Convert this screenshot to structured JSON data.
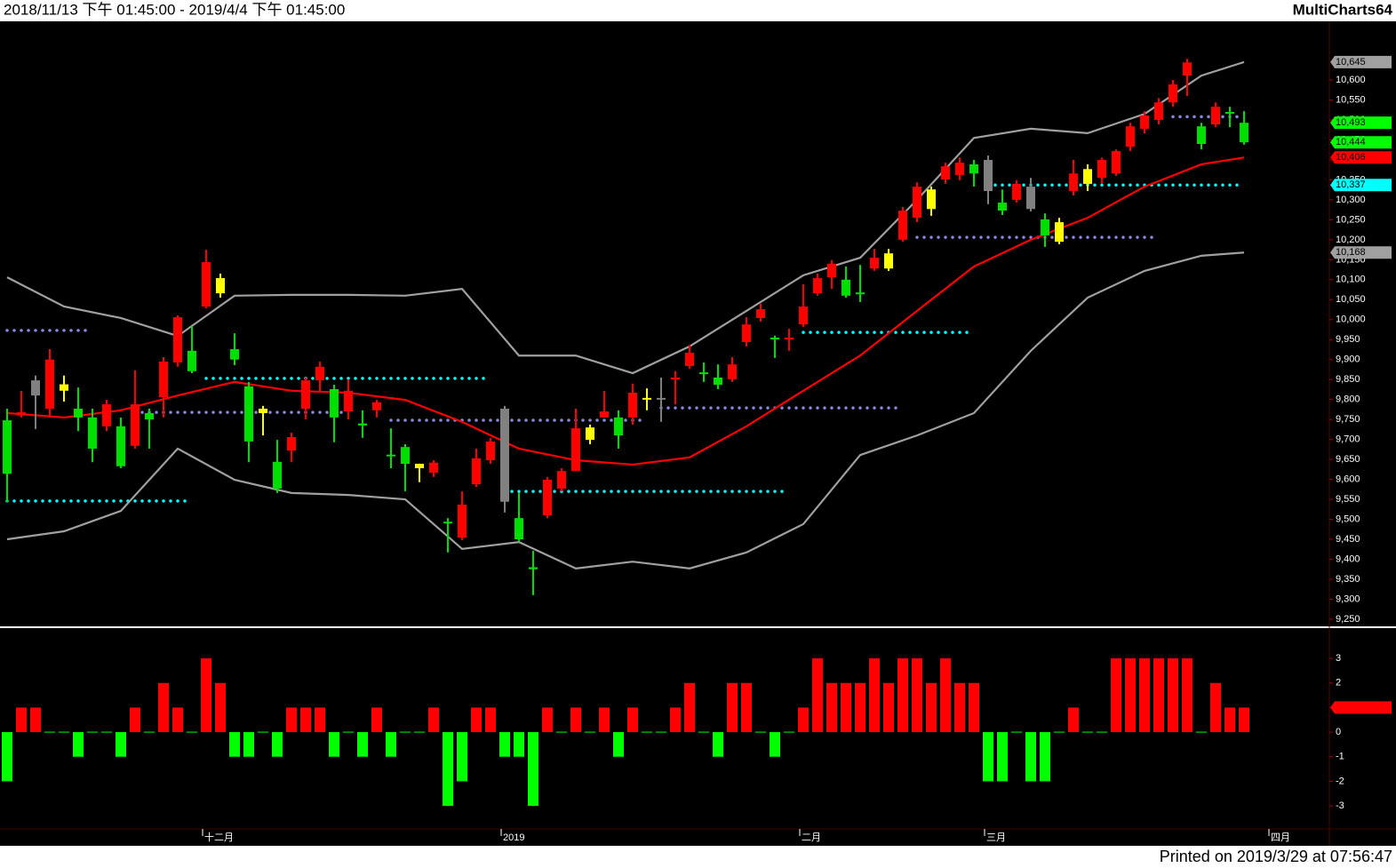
{
  "header": {
    "range": "2018/11/13 下午 01:45:00 - 2019/4/4 下午 01:45:00",
    "app": "MultiCharts64"
  },
  "footer": "Printed on 2019/3/29 at 07:56:47",
  "chart_data": [
    {
      "type": "candlestick",
      "categories": [
        null,
        null,
        null,
        null,
        null,
        null,
        null,
        null,
        null,
        null,
        null,
        null,
        null,
        null,
        "十二月",
        null,
        null,
        null,
        null,
        null,
        null,
        null,
        null,
        null,
        null,
        null,
        null,
        null,
        null,
        null,
        null,
        null,
        null,
        null,
        null,
        "2019",
        null,
        null,
        null,
        null,
        null,
        null,
        null,
        null,
        null,
        null,
        null,
        null,
        null,
        null,
        null,
        null,
        null,
        null,
        null,
        null,
        "二月",
        null,
        null,
        null,
        null,
        null,
        null,
        null,
        null,
        null,
        null,
        null,
        null,
        "三月",
        null,
        null,
        null,
        null,
        null,
        null,
        null,
        null,
        null,
        null,
        null,
        null,
        null,
        null,
        null,
        null,
        null,
        null,
        null,
        "四月"
      ],
      "open": [
        9748,
        9760,
        9810,
        9777,
        9822,
        9777,
        9755,
        9733,
        9733,
        9684,
        9766,
        9806,
        9893,
        9922,
        10033,
        10066,
        9926,
        9833,
        9766,
        9644,
        9672,
        9777,
        9848,
        9826,
        9770,
        9740,
        9773,
        9662,
        9681,
        9628,
        9617,
        9494,
        9454,
        9588,
        9648,
        9777,
        9503,
        9380,
        9510,
        9577,
        9621,
        9699,
        9755,
        9755,
        9755,
        9800,
        9800,
        9850,
        9884,
        9868,
        9855,
        9851,
        9944,
        10004,
        9955,
        9951,
        9988,
        10066,
        10106,
        10100,
        10068,
        10128,
        10128,
        10200,
        10255,
        10277,
        10351,
        10362,
        10389,
        10400,
        10293,
        10300,
        10333,
        10251,
        10244,
        10322,
        10340,
        10355,
        10366,
        10433,
        10478,
        10500,
        10544,
        10611,
        10484,
        10489,
        10520,
        10493,
        null,
        null
      ],
      "high": [
        9777,
        9822,
        9860,
        9926,
        9860,
        9830,
        9777,
        9799,
        9755,
        9873,
        9777,
        9906,
        10011,
        9984,
        10175,
        10115,
        9966,
        9844,
        9784,
        9699,
        9717,
        9855,
        9895,
        9837,
        9850,
        9773,
        9799,
        9728,
        9688,
        9639,
        9648,
        9503,
        9570,
        9677,
        9704,
        9784,
        9566,
        9421,
        9606,
        9628,
        9777,
        9737,
        9822,
        9773,
        9840,
        9828,
        9855,
        9871,
        9937,
        9893,
        9888,
        9906,
        10006,
        10040,
        9960,
        9977,
        10088,
        10115,
        10149,
        10133,
        10137,
        10177,
        10177,
        10282,
        10344,
        10333,
        10393,
        10406,
        10400,
        10411,
        10326,
        10349,
        10355,
        10266,
        10255,
        10400,
        10389,
        10406,
        10426,
        10493,
        10522,
        10555,
        10600,
        10653,
        10493,
        10544,
        10533,
        10522,
        null,
        null
      ],
      "low": [
        9543,
        9755,
        9726,
        9755,
        9795,
        9721,
        9643,
        9721,
        9628,
        9677,
        9677,
        9755,
        9882,
        9866,
        10028,
        10055,
        9886,
        9643,
        9710,
        9566,
        9643,
        9750,
        9822,
        9693,
        9750,
        9704,
        9755,
        9628,
        9570,
        9593,
        9606,
        9417,
        9448,
        9581,
        9639,
        9517,
        9443,
        9310,
        9503,
        9570,
        9621,
        9688,
        9755,
        9677,
        9737,
        9773,
        9744,
        9788,
        9877,
        9844,
        9826,
        9844,
        9933,
        9995,
        9904,
        9922,
        9982,
        10060,
        10077,
        10055,
        10044,
        10122,
        10122,
        10195,
        10244,
        10260,
        10340,
        10349,
        10333,
        10289,
        10262,
        10293,
        10271,
        10182,
        10189,
        10311,
        10322,
        10340,
        10360,
        10422,
        10466,
        10489,
        10533,
        10560,
        10426,
        10482,
        10482,
        10438,
        null,
        null
      ],
      "close": [
        9614,
        9768,
        9848,
        9900,
        9838,
        9755,
        9677,
        9788,
        9633,
        9788,
        9750,
        9895,
        10006,
        9871,
        10144,
        10104,
        9900,
        9695,
        9777,
        9577,
        9706,
        9848,
        9882,
        9755,
        9822,
        9735,
        9793,
        9658,
        9639,
        9639,
        9642,
        9490,
        9537,
        9653,
        9695,
        9544,
        9450,
        9375,
        9599,
        9621,
        9728,
        9730,
        9770,
        9710,
        9817,
        9804,
        9804,
        9855,
        9917,
        9864,
        9837,
        9888,
        9988,
        10026,
        9952,
        9955,
        10033,
        10104,
        10140,
        10060,
        10064,
        10155,
        10166,
        10273,
        10333,
        10326,
        10384,
        10393,
        10366,
        10322,
        10273,
        10340,
        10277,
        10211,
        10195,
        10366,
        10377,
        10400,
        10422,
        10484,
        10511,
        10544,
        10589,
        10644,
        10440,
        10533,
        10518,
        10444,
        null,
        null
      ],
      "candle_colors": [
        "#00e000",
        "#ff0000",
        "#808080",
        "#ff0000",
        "#ffff00",
        "#00e000",
        "#00e000",
        "#ff0000",
        "#00e000",
        "#ff0000",
        "#00e000",
        "#ff0000",
        "#ff0000",
        "#00e000",
        "#ff0000",
        "#ffff00",
        "#00e000",
        "#00e000",
        "#ffff00",
        "#00e000",
        "#ff0000",
        "#ff0000",
        "#ff0000",
        "#00e000",
        "#ff0000",
        "#00e000",
        "#ff0000",
        "#00e000",
        "#00e000",
        "#ffff00",
        "#ff0000",
        "#00e000",
        "#ff0000",
        "#ff0000",
        "#ff0000",
        "#808080",
        "#00e000",
        "#00e000",
        "#ff0000",
        "#ff0000",
        "#ff0000",
        "#ffff00",
        "#ff0000",
        "#00e000",
        "#ff0000",
        "#ffff00",
        "#808080",
        "#ff0000",
        "#ff0000",
        "#00e000",
        "#00e000",
        "#ff0000",
        "#ff0000",
        "#ff0000",
        "#00e000",
        "#ff0000",
        "#ff0000",
        "#ff0000",
        "#ff0000",
        "#00e000",
        "#00e000",
        "#ff0000",
        "#ffff00",
        "#ff0000",
        "#ff0000",
        "#ffff00",
        "#ff0000",
        "#ff0000",
        "#00e000",
        "#808080",
        "#00e000",
        "#ff0000",
        "#808080",
        "#00e000",
        "#ffff00",
        "#ff0000",
        "#ffff00",
        "#ff0000",
        "#ff0000",
        "#ff0000",
        "#ff0000",
        "#ff0000",
        "#ff0000",
        "#ff0000",
        "#00e000",
        "#ff0000",
        "#00e000",
        "#00e000",
        null,
        null
      ],
      "lines": [
        {
          "color": "#a0a0a0",
          "x": [
            0,
            4,
            8,
            12,
            16,
            20,
            24,
            28,
            32,
            36,
            40,
            44,
            48,
            52,
            56,
            60,
            64,
            68,
            72,
            76,
            80,
            84,
            87
          ],
          "values": [
            10106,
            10033,
            10004,
            9959,
            10060,
            10062,
            10062,
            10060,
            10077,
            9910,
            9910,
            9866,
            9933,
            10022,
            10111,
            10155,
            10300,
            10455,
            10478,
            10467,
            10515,
            10611,
            10645
          ]
        },
        {
          "color": "#ff0000",
          "x": [
            0,
            4,
            8,
            12,
            16,
            20,
            24,
            28,
            32,
            36,
            40,
            44,
            48,
            52,
            56,
            60,
            64,
            68,
            72,
            76,
            80,
            84,
            87
          ],
          "values": [
            9766,
            9755,
            9773,
            9810,
            9844,
            9822,
            9817,
            9799,
            9744,
            9677,
            9648,
            9637,
            9655,
            9733,
            9822,
            9910,
            10022,
            10133,
            10200,
            10255,
            10333,
            10389,
            10406
          ]
        },
        {
          "color": "#a0a0a0",
          "x": [
            0,
            4,
            8,
            12,
            16,
            20,
            24,
            28,
            32,
            36,
            40,
            44,
            48,
            52,
            56,
            60,
            64,
            68,
            72,
            76,
            80,
            84,
            87
          ],
          "values": [
            9450,
            9470,
            9521,
            9677,
            9599,
            9566,
            9561,
            9550,
            9426,
            9443,
            9377,
            9394,
            9377,
            9417,
            9488,
            9661,
            9710,
            9766,
            9922,
            10055,
            10122,
            10160,
            10168
          ]
        }
      ],
      "levels": [
        {
          "color": "#8888dd",
          "x": [
            0,
            6
          ],
          "value": 9973
        },
        {
          "color": "#00ffff",
          "x": [
            0,
            13
          ],
          "value": 9546
        },
        {
          "color": "#00ffff",
          "x": [
            14,
            34
          ],
          "value": 9853
        },
        {
          "color": "#8888dd",
          "x": [
            9,
            24
          ],
          "value": 9768
        },
        {
          "color": "#8888dd",
          "x": [
            27,
            45
          ],
          "value": 9748
        },
        {
          "color": "#00ffff",
          "x": [
            35,
            55
          ],
          "value": 9570
        },
        {
          "color": "#8888dd",
          "x": [
            46,
            63
          ],
          "value": 9779
        },
        {
          "color": "#00ffff",
          "x": [
            56,
            68
          ],
          "value": 9968
        },
        {
          "color": "#8888dd",
          "x": [
            64,
            81
          ],
          "value": 10206
        },
        {
          "color": "#00ffff",
          "x": [
            69,
            87
          ],
          "value": 10337
        },
        {
          "color": "#8888dd",
          "x": [
            82,
            87
          ],
          "value": 10508
        }
      ],
      "price_markers": [
        {
          "value": 10645,
          "label": "10,645",
          "color": "#a0a0a0"
        },
        {
          "value": 10493,
          "label": "10,493",
          "color": "#00ff00"
        },
        {
          "value": 10444,
          "label": "10,444",
          "color": "#00ff00"
        },
        {
          "value": 10406,
          "label": "10,406",
          "color": "#ff0000"
        },
        {
          "value": 10337,
          "label": "10,337",
          "color": "#00ffff"
        },
        {
          "value": 10168,
          "label": "10,168",
          "color": "#a0a0a0"
        }
      ],
      "ylim": [
        9232,
        10747
      ],
      "yticks": [
        {
          "value": 9250,
          "label": "9,250"
        },
        {
          "value": 9300,
          "label": "9,300"
        },
        {
          "value": 9350,
          "label": "9,350"
        },
        {
          "value": 9400,
          "label": "9,400"
        },
        {
          "value": 9450,
          "label": "9,450"
        },
        {
          "value": 9500,
          "label": "9,500"
        },
        {
          "value": 9550,
          "label": "9,550"
        },
        {
          "value": 9600,
          "label": "9,600"
        },
        {
          "value": 9650,
          "label": "9,650"
        },
        {
          "value": 9700,
          "label": "9,700"
        },
        {
          "value": 9750,
          "label": "9,750"
        },
        {
          "value": 9800,
          "label": "9,800"
        },
        {
          "value": 9850,
          "label": "9,850"
        },
        {
          "value": 9900,
          "label": "9,900"
        },
        {
          "value": 9950,
          "label": "9,950"
        },
        {
          "value": 10000,
          "label": "10,000"
        },
        {
          "value": 10050,
          "label": "10,050"
        },
        {
          "value": 10100,
          "label": "10,100"
        },
        {
          "value": 10150,
          "label": "10,150"
        },
        {
          "value": 10200,
          "label": "10,200"
        },
        {
          "value": 10250,
          "label": "10,250"
        },
        {
          "value": 10300,
          "label": "10,300"
        },
        {
          "value": 10350,
          "label": "10,350"
        },
        {
          "value": 10400,
          "label": "10,400"
        },
        {
          "value": 10450,
          "label": "10,450"
        },
        {
          "value": 10500,
          "label": "10,500"
        },
        {
          "value": 10550,
          "label": "10,550"
        },
        {
          "value": 10600,
          "label": "10,600"
        }
      ]
    },
    {
      "type": "bar",
      "values": [
        -2,
        1,
        1,
        0,
        0,
        -1,
        0,
        0,
        -1,
        1,
        0,
        2,
        1,
        0,
        3,
        2,
        -1,
        -1,
        0,
        -1,
        1,
        1,
        1,
        -1,
        0,
        -1,
        1,
        -1,
        0,
        0,
        1,
        -3,
        -2,
        1,
        1,
        -1,
        -1,
        -3,
        1,
        0,
        1,
        0,
        1,
        -1,
        1,
        0,
        0,
        1,
        2,
        0,
        -1,
        2,
        2,
        0,
        -1,
        0,
        1,
        3,
        2,
        2,
        2,
        3,
        2,
        3,
        3,
        2,
        3,
        2,
        2,
        -2,
        -2,
        0,
        -2,
        -2,
        0,
        1,
        0,
        0,
        3,
        3,
        3,
        3,
        3,
        3,
        0,
        2,
        1,
        1,
        null,
        null
      ],
      "pos_color": "#ff0000",
      "neg_color": "#00ff00",
      "marker": 1,
      "marker_color": "#ff0000",
      "ylim": [
        -3.9,
        4.23
      ],
      "yticks": [
        -3,
        -2,
        -1,
        0,
        1,
        2,
        3
      ]
    }
  ]
}
